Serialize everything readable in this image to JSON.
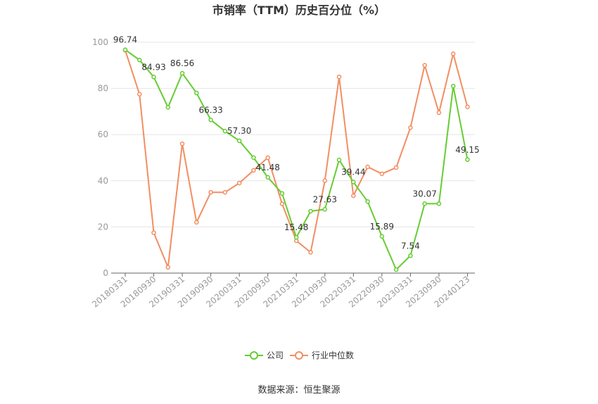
{
  "chart_data": {
    "type": "line",
    "title": "市销率（TTM）历史百分位（%）",
    "source": "数据来源：恒生聚源",
    "ylim": [
      0,
      100
    ],
    "yticks": [
      0,
      20,
      40,
      60,
      80,
      100
    ],
    "x_tick_labels": [
      "20180331",
      "20180930",
      "20190331",
      "20190930",
      "20200331",
      "20200930",
      "20210331",
      "20210930",
      "20220331",
      "20220930",
      "20230331",
      "20230930",
      "20240123"
    ],
    "grid": true,
    "legend_position": "bottom",
    "colors": {
      "company": "#66cc33",
      "industry": "#f28e62"
    },
    "series": [
      {
        "name": "公司",
        "values": [
          96.74,
          92.3,
          84.93,
          71.8,
          86.56,
          78.0,
          66.33,
          61.5,
          57.3,
          50.0,
          41.48,
          34.5,
          15.48,
          26.8,
          27.63,
          49.0,
          39.44,
          31.0,
          15.89,
          1.5,
          7.54,
          30.07,
          30.07,
          81.0,
          49.15
        ],
        "labels": [
          "96.74",
          "",
          "84.93",
          "",
          "86.56",
          "",
          "66.33",
          "",
          "57.30",
          "",
          "41.48",
          "",
          "15.48",
          "",
          "27.63",
          "",
          "39.44",
          "",
          "15.89",
          "",
          "7.54",
          "30.07",
          "",
          "",
          "49.15"
        ]
      },
      {
        "name": "行业中位数",
        "values": [
          96.5,
          77.5,
          17.5,
          2.5,
          56.0,
          22.0,
          35.0,
          35.0,
          39.0,
          44.5,
          50.0,
          30.0,
          14.0,
          9.0,
          40.0,
          85.0,
          33.5,
          46.0,
          43.0,
          45.7,
          63.0,
          90.0,
          69.5,
          95.0,
          72.0
        ]
      }
    ]
  }
}
